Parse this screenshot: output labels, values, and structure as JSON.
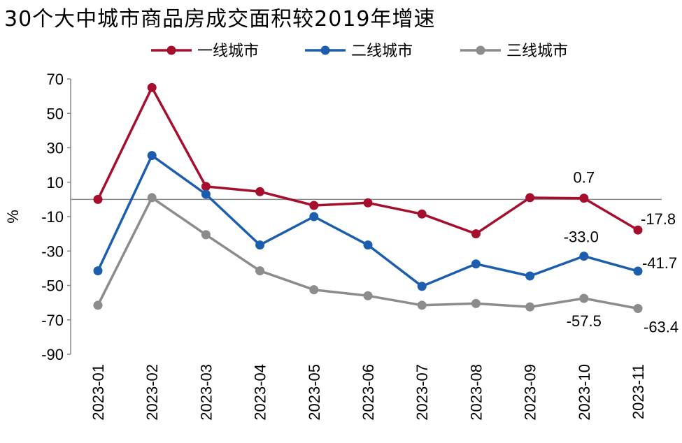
{
  "chart_data": {
    "type": "line",
    "title": "30个大中城市商品房成交面积较2019年增速",
    "ylabel": "%",
    "xlabel": "",
    "ylim": [
      -90,
      70
    ],
    "yticks": [
      70,
      50,
      30,
      10,
      -10,
      -30,
      -50,
      -70,
      -90
    ],
    "reference_line": 0,
    "categories": [
      "2023-01",
      "2023-02",
      "2023-03",
      "2023-04",
      "2023-05",
      "2023-06",
      "2023-07",
      "2023-08",
      "2023-09",
      "2023-10",
      "2023-11"
    ],
    "legend_position": "top-center",
    "series": [
      {
        "name": "一线城市",
        "color": "#A50F2D",
        "values": [
          0,
          65,
          7.5,
          4.5,
          -3.5,
          -2,
          -8.5,
          -20,
          1,
          0.7,
          -17.8
        ],
        "labels": {
          "9": "0.7",
          "10": "-17.8"
        }
      },
      {
        "name": "二线城市",
        "color": "#1C5EAD",
        "values": [
          -41.5,
          25.5,
          3,
          -26.5,
          -10,
          -26.5,
          -50.5,
          -37.5,
          -44.5,
          -33.0,
          -41.7
        ],
        "labels": {
          "9": "-33.0",
          "10": "-41.7"
        }
      },
      {
        "name": "三线城市",
        "color": "#8C8C8C",
        "values": [
          -61.5,
          1,
          -20.5,
          -41.5,
          -52.5,
          -56,
          -61.5,
          -60.5,
          -62.5,
          -57.5,
          -63.4
        ],
        "labels": {
          "9": "-57.5",
          "10": "-63.4"
        }
      }
    ]
  }
}
